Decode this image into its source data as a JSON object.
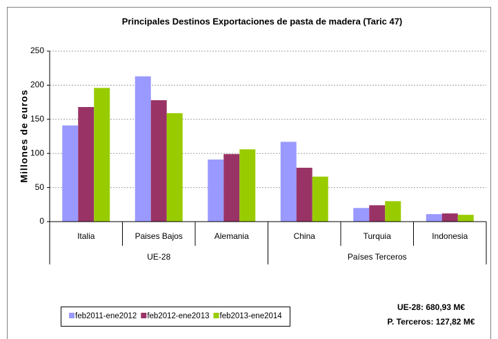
{
  "chart_data": {
    "type": "bar",
    "title": "Principales Destinos Exportaciones de pasta de madera (Taric 47)",
    "y_label": "Millones de euros",
    "categories": [
      "Italia",
      "Paises Bajos",
      "Alemania",
      "China",
      "Turquia",
      "Indonesia"
    ],
    "category_groups": [
      "UE-28",
      "UE-28",
      "UE-28",
      "Países Terceros",
      "Países Terceros",
      "Países Terceros"
    ],
    "series": [
      {
        "name": "feb2011-ene2012",
        "color": "#9999ff",
        "values": [
          141,
          213,
          91,
          117,
          20,
          11
        ]
      },
      {
        "name": "feb2012-ene2013",
        "color": "#993366",
        "values": [
          168,
          178,
          99,
          79,
          24,
          12
        ]
      },
      {
        "name": "feb2013-ene2014",
        "color": "#99cc00",
        "values": [
          196,
          159,
          106,
          66,
          30,
          10
        ]
      }
    ],
    "ylim": [
      0,
      250
    ],
    "yticks": [
      0,
      50,
      100,
      150,
      200,
      250
    ],
    "grid": true,
    "annotations": [
      "UE-28: 680,93 M€",
      "P. Terceros:  127,82 M€"
    ]
  }
}
